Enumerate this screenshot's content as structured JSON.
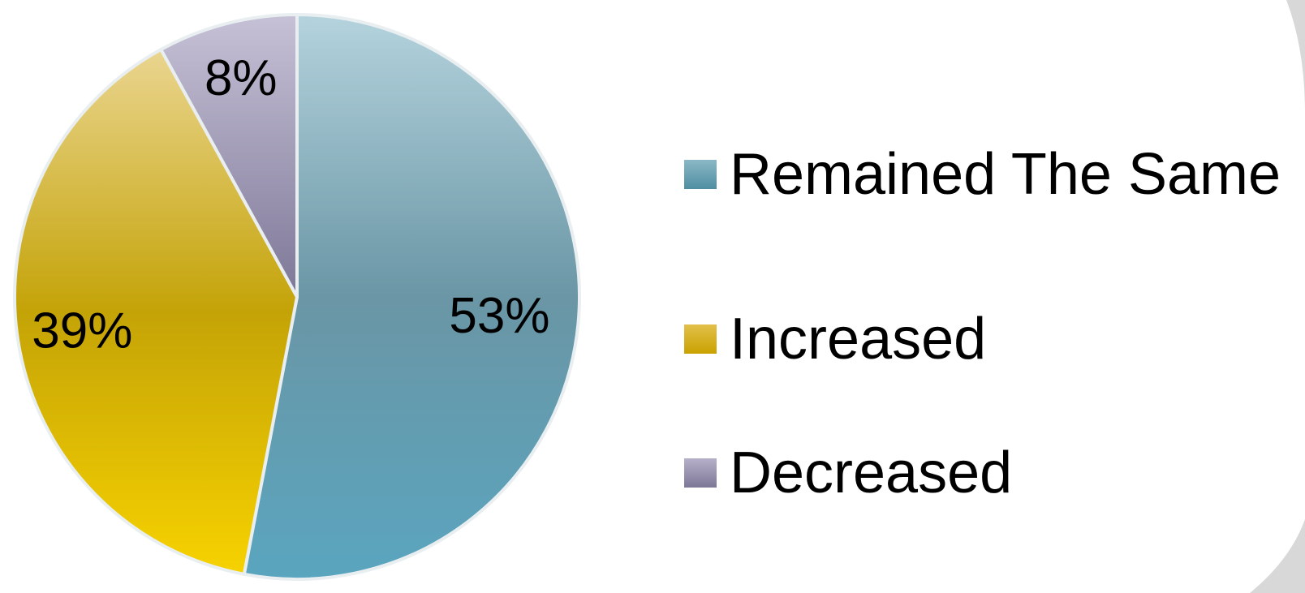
{
  "chart_data": {
    "type": "pie",
    "title": "",
    "legend_position": "right",
    "slices": [
      {
        "label": "Remained The Same",
        "value": 53,
        "value_label": "53%",
        "color": "#5E98A8"
      },
      {
        "label": "Increased",
        "value": 39,
        "value_label": "39%",
        "color": "#C9A80A"
      },
      {
        "label": "Decreased",
        "value": 8,
        "value_label": "8%",
        "color": "#8A84A3"
      }
    ]
  }
}
